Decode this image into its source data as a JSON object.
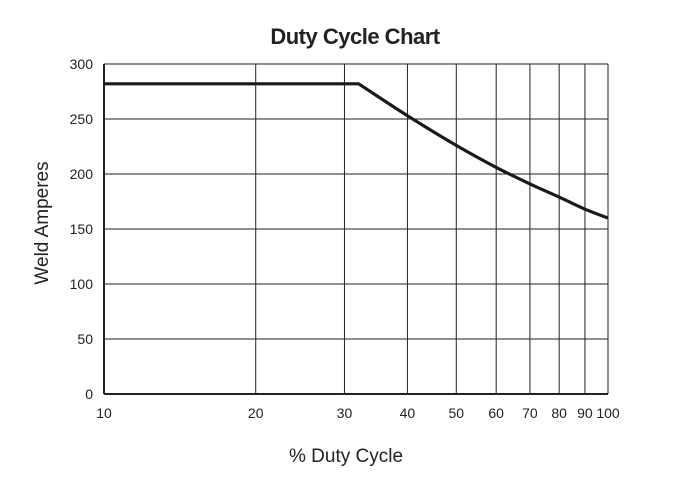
{
  "chart_data": {
    "type": "line",
    "title": "Duty Cycle Chart",
    "xlabel": "% Duty Cycle",
    "ylabel": "Weld Amperes",
    "x_scale": "log",
    "xlim": [
      10,
      100
    ],
    "ylim": [
      0,
      300
    ],
    "x_ticks": [
      10,
      20,
      30,
      40,
      50,
      60,
      70,
      80,
      90,
      100
    ],
    "y_ticks": [
      0,
      50,
      100,
      150,
      200,
      250,
      300
    ],
    "grid": true,
    "legend": "none",
    "series": [
      {
        "x": [
          10,
          32,
          40,
          50,
          60,
          70,
          80,
          90,
          100
        ],
        "y": [
          282,
          282,
          253,
          226,
          206,
          191,
          179,
          168,
          160
        ]
      }
    ],
    "colors": {
      "line": "#1a1a1a",
      "grid": "#222222",
      "text": "#222222"
    }
  }
}
